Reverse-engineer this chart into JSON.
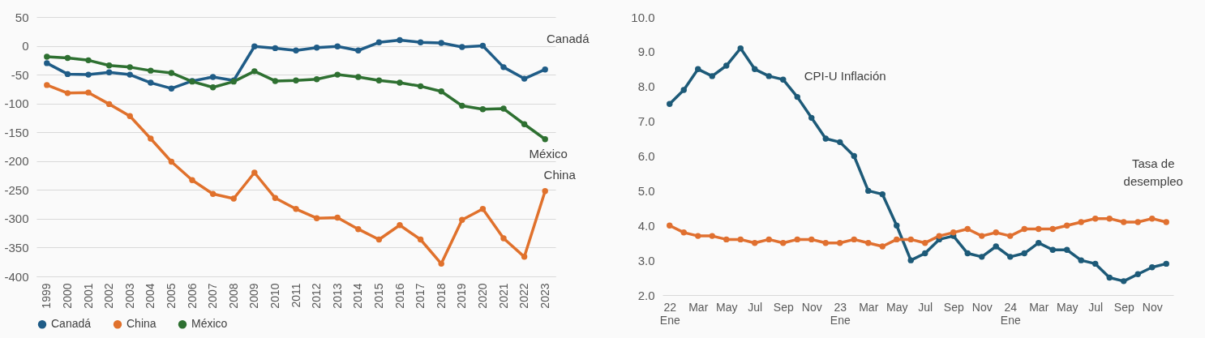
{
  "chart_data": [
    {
      "type": "line",
      "categories": [
        "1999",
        "2000",
        "2001",
        "2002",
        "2003",
        "2004",
        "2005",
        "2006",
        "2007",
        "2008",
        "2009",
        "2010",
        "2011",
        "2012",
        "2013",
        "2014",
        "2015",
        "2016",
        "2017",
        "2018",
        "2019",
        "2020",
        "2021",
        "2022",
        "2023"
      ],
      "series": [
        {
          "name": "Canadá",
          "color": "#1f5c87",
          "values": [
            -30,
            -49,
            -50,
            -46,
            -50,
            -64,
            -74,
            -61,
            -54,
            -60,
            -1,
            -4,
            -8,
            -3,
            -1,
            -8,
            6,
            10,
            6,
            5,
            -2,
            0,
            -37,
            -57,
            -41
          ]
        },
        {
          "name": "China",
          "color": "#e0712c",
          "values": [
            -68,
            -82,
            -81,
            -101,
            -122,
            -161,
            -201,
            -233,
            -257,
            -265,
            -220,
            -264,
            -283,
            -299,
            -298,
            -318,
            -336,
            -311,
            -336,
            -378,
            -302,
            -283,
            -334,
            -366,
            -252
          ]
        },
        {
          "name": "México",
          "color": "#2e7031",
          "values": [
            -19,
            -21,
            -25,
            -34,
            -37,
            -43,
            -47,
            -62,
            -72,
            -62,
            -44,
            -61,
            -60,
            -58,
            -50,
            -54,
            -60,
            -64,
            -70,
            -79,
            -104,
            -110,
            -109,
            -136,
            -162
          ]
        }
      ],
      "ylim": [
        -400,
        50
      ],
      "yticks": [
        -400,
        -350,
        -300,
        -250,
        -200,
        -150,
        -100,
        -50,
        0,
        50
      ],
      "grid": "y",
      "legend": "bottom",
      "marker": "circle"
    },
    {
      "type": "line",
      "categories": [
        "22 Ene",
        null,
        "Mar",
        null,
        "May",
        null,
        "Jul",
        null,
        "Sep",
        null,
        "Nov",
        null,
        "23 Ene",
        null,
        "Mar",
        null,
        "May",
        null,
        "Jul",
        null,
        "Sep",
        null,
        "Nov",
        null,
        "24 Ene",
        null,
        "Mar",
        null,
        "May",
        null,
        "Jul",
        null,
        "Sep",
        null,
        "Nov",
        null
      ],
      "series": [
        {
          "name": "CPI-U Inflación",
          "color": "#1d5a78",
          "values": [
            7.5,
            7.9,
            8.5,
            8.3,
            8.6,
            9.1,
            8.5,
            8.3,
            8.2,
            7.7,
            7.1,
            6.5,
            6.4,
            6.0,
            5.0,
            4.9,
            4.0,
            3.0,
            3.2,
            3.6,
            3.7,
            3.2,
            3.1,
            3.4,
            3.1,
            3.2,
            3.5,
            3.3,
            3.3,
            3.0,
            2.9,
            2.5,
            2.4,
            2.6,
            2.8,
            2.9
          ]
        },
        {
          "name": "Tasa de desempleo",
          "color": "#e07030",
          "values": [
            4.0,
            3.8,
            3.7,
            3.7,
            3.6,
            3.6,
            3.5,
            3.6,
            3.5,
            3.6,
            3.6,
            3.5,
            3.5,
            3.6,
            3.5,
            3.4,
            3.6,
            3.6,
            3.5,
            3.7,
            3.8,
            3.9,
            3.7,
            3.8,
            3.7,
            3.9,
            3.9,
            3.9,
            4.0,
            4.1,
            4.2,
            4.2,
            4.1,
            4.1,
            4.2,
            4.1
          ]
        }
      ],
      "ylim": [
        2,
        10
      ],
      "yticks": [
        {
          "value": 2,
          "label": "2.0"
        },
        {
          "value": 3,
          "label": "3.0"
        },
        {
          "value": 4,
          "label": "4.0"
        },
        {
          "value": 5,
          "label": "5.0"
        },
        {
          "value": 6,
          "label": "6.0"
        },
        {
          "value": 7,
          "label": "7.0"
        },
        {
          "value": 8,
          "label": "8.0"
        },
        {
          "value": 9,
          "label": "9.0"
        },
        {
          "value": 10,
          "label": "10.0"
        }
      ],
      "marker": "circle"
    }
  ]
}
